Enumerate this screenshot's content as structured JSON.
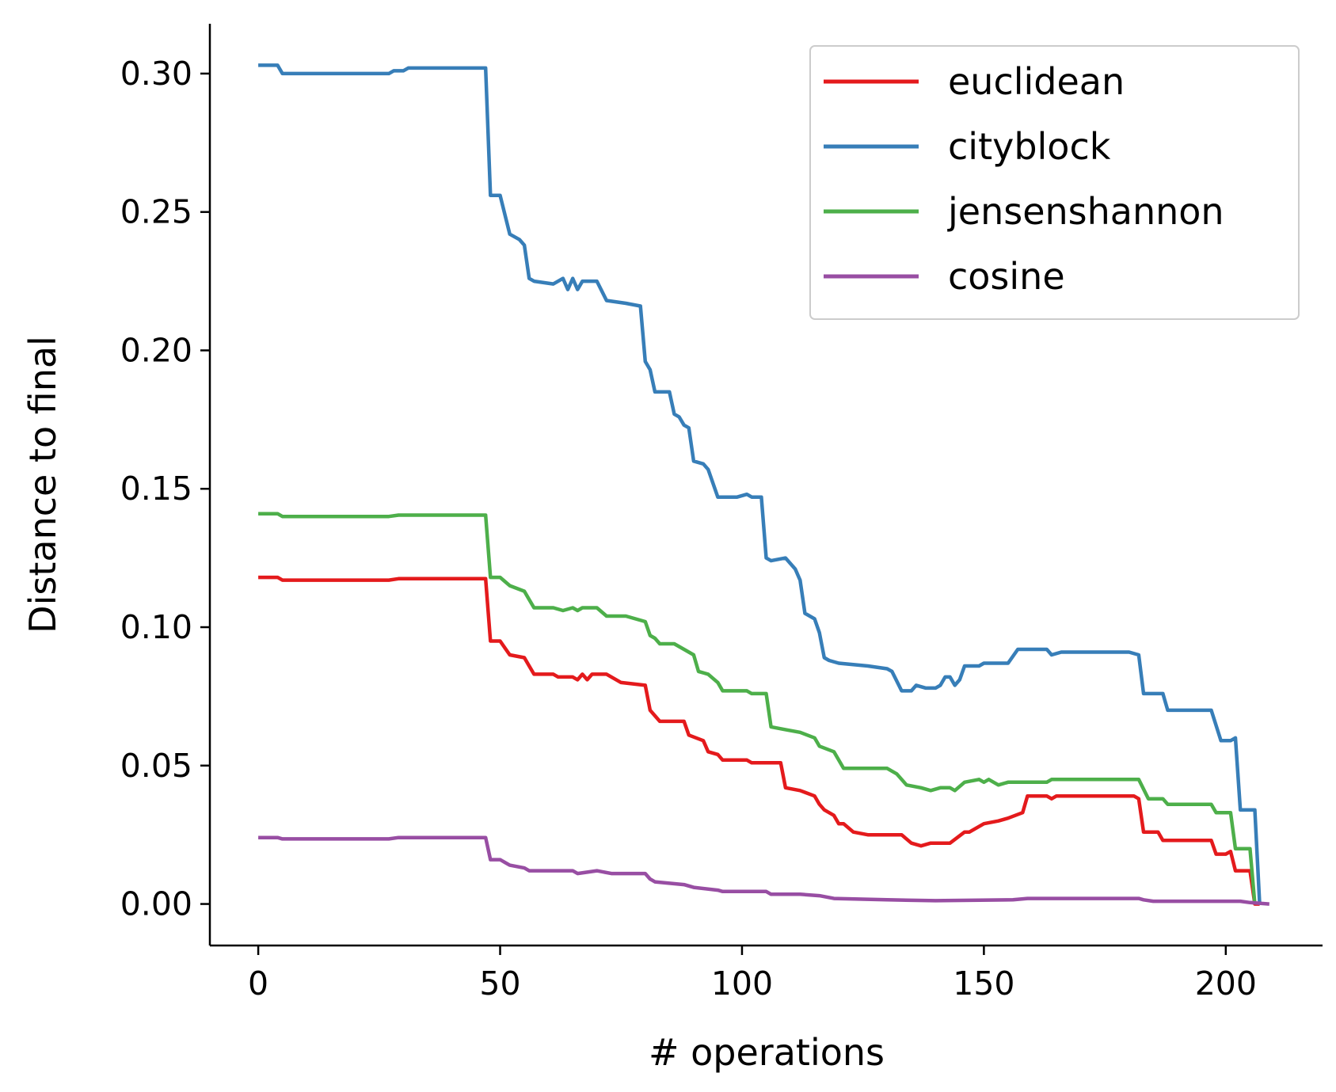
{
  "chart_data": {
    "type": "line",
    "title": "",
    "xlabel": "# operations",
    "ylabel": "Distance to final",
    "xlim": [
      -10,
      220
    ],
    "ylim": [
      -0.015,
      0.318
    ],
    "xticks": [
      "0",
      "50",
      "100",
      "150",
      "200"
    ],
    "yticks": [
      "0.00",
      "0.05",
      "0.10",
      "0.15",
      "0.20",
      "0.25",
      "0.30"
    ],
    "grid": false,
    "legend_position": "top-right",
    "series": [
      {
        "name": "euclidean",
        "color": "#e41a1c",
        "points": [
          [
            0,
            0.118
          ],
          [
            4,
            0.118
          ],
          [
            5,
            0.117
          ],
          [
            27,
            0.117
          ],
          [
            29,
            0.1175
          ],
          [
            47,
            0.1175
          ],
          [
            48,
            0.095
          ],
          [
            50,
            0.095
          ],
          [
            52,
            0.09
          ],
          [
            55,
            0.089
          ],
          [
            56,
            0.086
          ],
          [
            57,
            0.083
          ],
          [
            61,
            0.083
          ],
          [
            62,
            0.082
          ],
          [
            65,
            0.082
          ],
          [
            66,
            0.081
          ],
          [
            67,
            0.083
          ],
          [
            68,
            0.081
          ],
          [
            69,
            0.083
          ],
          [
            72,
            0.083
          ],
          [
            75,
            0.08
          ],
          [
            80,
            0.079
          ],
          [
            81,
            0.07
          ],
          [
            83,
            0.066
          ],
          [
            85,
            0.066
          ],
          [
            88,
            0.066
          ],
          [
            89,
            0.061
          ],
          [
            92,
            0.059
          ],
          [
            93,
            0.055
          ],
          [
            95,
            0.054
          ],
          [
            96,
            0.052
          ],
          [
            101,
            0.052
          ],
          [
            102,
            0.051
          ],
          [
            108,
            0.051
          ],
          [
            109,
            0.042
          ],
          [
            112,
            0.041
          ],
          [
            115,
            0.039
          ],
          [
            116,
            0.036
          ],
          [
            117,
            0.034
          ],
          [
            119,
            0.032
          ],
          [
            120,
            0.029
          ],
          [
            121,
            0.029
          ],
          [
            123,
            0.026
          ],
          [
            126,
            0.025
          ],
          [
            133,
            0.025
          ],
          [
            135,
            0.022
          ],
          [
            137,
            0.021
          ],
          [
            139,
            0.022
          ],
          [
            143,
            0.022
          ],
          [
            146,
            0.026
          ],
          [
            147,
            0.026
          ],
          [
            150,
            0.029
          ],
          [
            153,
            0.03
          ],
          [
            155,
            0.031
          ],
          [
            158,
            0.033
          ],
          [
            159,
            0.039
          ],
          [
            163,
            0.039
          ],
          [
            164,
            0.038
          ],
          [
            165,
            0.039
          ],
          [
            175,
            0.039
          ],
          [
            181,
            0.039
          ],
          [
            182,
            0.038
          ],
          [
            183,
            0.026
          ],
          [
            186,
            0.026
          ],
          [
            187,
            0.023
          ],
          [
            197,
            0.023
          ],
          [
            198,
            0.018
          ],
          [
            200,
            0.018
          ],
          [
            201,
            0.019
          ],
          [
            202,
            0.012
          ],
          [
            205,
            0.012
          ],
          [
            206,
            0.0
          ],
          [
            207,
            0.0
          ]
        ]
      },
      {
        "name": "cityblock",
        "color": "#377eb8",
        "points": [
          [
            0,
            0.303
          ],
          [
            4,
            0.303
          ],
          [
            5,
            0.3
          ],
          [
            27,
            0.3
          ],
          [
            28,
            0.301
          ],
          [
            30,
            0.301
          ],
          [
            31,
            0.302
          ],
          [
            47,
            0.302
          ],
          [
            48,
            0.256
          ],
          [
            50,
            0.256
          ],
          [
            52,
            0.242
          ],
          [
            54,
            0.24
          ],
          [
            55,
            0.238
          ],
          [
            56,
            0.226
          ],
          [
            57,
            0.225
          ],
          [
            61,
            0.224
          ],
          [
            63,
            0.226
          ],
          [
            64,
            0.222
          ],
          [
            65,
            0.226
          ],
          [
            66,
            0.222
          ],
          [
            67,
            0.225
          ],
          [
            70,
            0.225
          ],
          [
            72,
            0.218
          ],
          [
            76,
            0.217
          ],
          [
            79,
            0.216
          ],
          [
            80,
            0.196
          ],
          [
            81,
            0.193
          ],
          [
            82,
            0.185
          ],
          [
            85,
            0.185
          ],
          [
            86,
            0.177
          ],
          [
            87,
            0.176
          ],
          [
            88,
            0.173
          ],
          [
            89,
            0.172
          ],
          [
            90,
            0.16
          ],
          [
            92,
            0.159
          ],
          [
            93,
            0.157
          ],
          [
            95,
            0.147
          ],
          [
            99,
            0.147
          ],
          [
            101,
            0.148
          ],
          [
            102,
            0.147
          ],
          [
            104,
            0.147
          ],
          [
            105,
            0.125
          ],
          [
            106,
            0.124
          ],
          [
            109,
            0.125
          ],
          [
            111,
            0.121
          ],
          [
            112,
            0.117
          ],
          [
            113,
            0.105
          ],
          [
            115,
            0.103
          ],
          [
            116,
            0.098
          ],
          [
            117,
            0.089
          ],
          [
            118,
            0.088
          ],
          [
            120,
            0.087
          ],
          [
            126,
            0.086
          ],
          [
            130,
            0.085
          ],
          [
            131,
            0.084
          ],
          [
            133,
            0.077
          ],
          [
            135,
            0.077
          ],
          [
            136,
            0.079
          ],
          [
            138,
            0.078
          ],
          [
            140,
            0.078
          ],
          [
            141,
            0.079
          ],
          [
            142,
            0.082
          ],
          [
            143,
            0.082
          ],
          [
            144,
            0.079
          ],
          [
            145,
            0.081
          ],
          [
            146,
            0.086
          ],
          [
            149,
            0.086
          ],
          [
            150,
            0.087
          ],
          [
            155,
            0.087
          ],
          [
            157,
            0.092
          ],
          [
            163,
            0.092
          ],
          [
            164,
            0.09
          ],
          [
            166,
            0.091
          ],
          [
            180,
            0.091
          ],
          [
            182,
            0.09
          ],
          [
            183,
            0.076
          ],
          [
            187,
            0.076
          ],
          [
            188,
            0.07
          ],
          [
            197,
            0.07
          ],
          [
            199,
            0.059
          ],
          [
            201,
            0.059
          ],
          [
            202,
            0.06
          ],
          [
            203,
            0.034
          ],
          [
            206,
            0.034
          ],
          [
            207,
            0.0
          ]
        ]
      },
      {
        "name": "jensenshannon",
        "color": "#4daf4a",
        "points": [
          [
            0,
            0.141
          ],
          [
            4,
            0.141
          ],
          [
            5,
            0.14
          ],
          [
            27,
            0.14
          ],
          [
            29,
            0.1405
          ],
          [
            47,
            0.1405
          ],
          [
            48,
            0.118
          ],
          [
            50,
            0.118
          ],
          [
            52,
            0.115
          ],
          [
            55,
            0.113
          ],
          [
            56,
            0.11
          ],
          [
            57,
            0.107
          ],
          [
            61,
            0.107
          ],
          [
            63,
            0.106
          ],
          [
            65,
            0.107
          ],
          [
            66,
            0.106
          ],
          [
            67,
            0.107
          ],
          [
            70,
            0.107
          ],
          [
            72,
            0.104
          ],
          [
            76,
            0.104
          ],
          [
            80,
            0.102
          ],
          [
            81,
            0.097
          ],
          [
            82,
            0.096
          ],
          [
            83,
            0.094
          ],
          [
            86,
            0.094
          ],
          [
            88,
            0.092
          ],
          [
            90,
            0.09
          ],
          [
            91,
            0.084
          ],
          [
            93,
            0.083
          ],
          [
            95,
            0.08
          ],
          [
            96,
            0.077
          ],
          [
            101,
            0.077
          ],
          [
            102,
            0.076
          ],
          [
            105,
            0.076
          ],
          [
            106,
            0.064
          ],
          [
            109,
            0.063
          ],
          [
            112,
            0.062
          ],
          [
            115,
            0.06
          ],
          [
            116,
            0.057
          ],
          [
            119,
            0.055
          ],
          [
            120,
            0.052
          ],
          [
            121,
            0.049
          ],
          [
            130,
            0.049
          ],
          [
            132,
            0.047
          ],
          [
            134,
            0.043
          ],
          [
            137,
            0.042
          ],
          [
            139,
            0.041
          ],
          [
            141,
            0.042
          ],
          [
            143,
            0.042
          ],
          [
            144,
            0.041
          ],
          [
            146,
            0.044
          ],
          [
            149,
            0.045
          ],
          [
            150,
            0.044
          ],
          [
            151,
            0.045
          ],
          [
            153,
            0.043
          ],
          [
            155,
            0.044
          ],
          [
            158,
            0.044
          ],
          [
            163,
            0.044
          ],
          [
            164,
            0.045
          ],
          [
            174,
            0.045
          ],
          [
            182,
            0.045
          ],
          [
            184,
            0.038
          ],
          [
            187,
            0.038
          ],
          [
            188,
            0.036
          ],
          [
            197,
            0.036
          ],
          [
            198,
            0.033
          ],
          [
            201,
            0.033
          ],
          [
            202,
            0.02
          ],
          [
            205,
            0.02
          ],
          [
            206,
            0.0
          ]
        ]
      },
      {
        "name": "cosine",
        "color": "#984ea3",
        "points": [
          [
            0,
            0.024
          ],
          [
            4,
            0.024
          ],
          [
            5,
            0.0235
          ],
          [
            27,
            0.0235
          ],
          [
            29,
            0.024
          ],
          [
            47,
            0.024
          ],
          [
            48,
            0.016
          ],
          [
            50,
            0.016
          ],
          [
            52,
            0.014
          ],
          [
            55,
            0.013
          ],
          [
            56,
            0.012
          ],
          [
            61,
            0.012
          ],
          [
            65,
            0.012
          ],
          [
            66,
            0.011
          ],
          [
            70,
            0.012
          ],
          [
            73,
            0.011
          ],
          [
            80,
            0.011
          ],
          [
            81,
            0.009
          ],
          [
            82,
            0.008
          ],
          [
            88,
            0.007
          ],
          [
            90,
            0.006
          ],
          [
            95,
            0.005
          ],
          [
            96,
            0.0045
          ],
          [
            105,
            0.0045
          ],
          [
            106,
            0.0035
          ],
          [
            112,
            0.0035
          ],
          [
            116,
            0.003
          ],
          [
            119,
            0.002
          ],
          [
            130,
            0.0015
          ],
          [
            140,
            0.0012
          ],
          [
            156,
            0.0015
          ],
          [
            159,
            0.002
          ],
          [
            182,
            0.002
          ],
          [
            183,
            0.0015
          ],
          [
            185,
            0.001
          ],
          [
            203,
            0.001
          ],
          [
            205,
            0.0005
          ],
          [
            209,
            0.0
          ]
        ]
      }
    ]
  }
}
